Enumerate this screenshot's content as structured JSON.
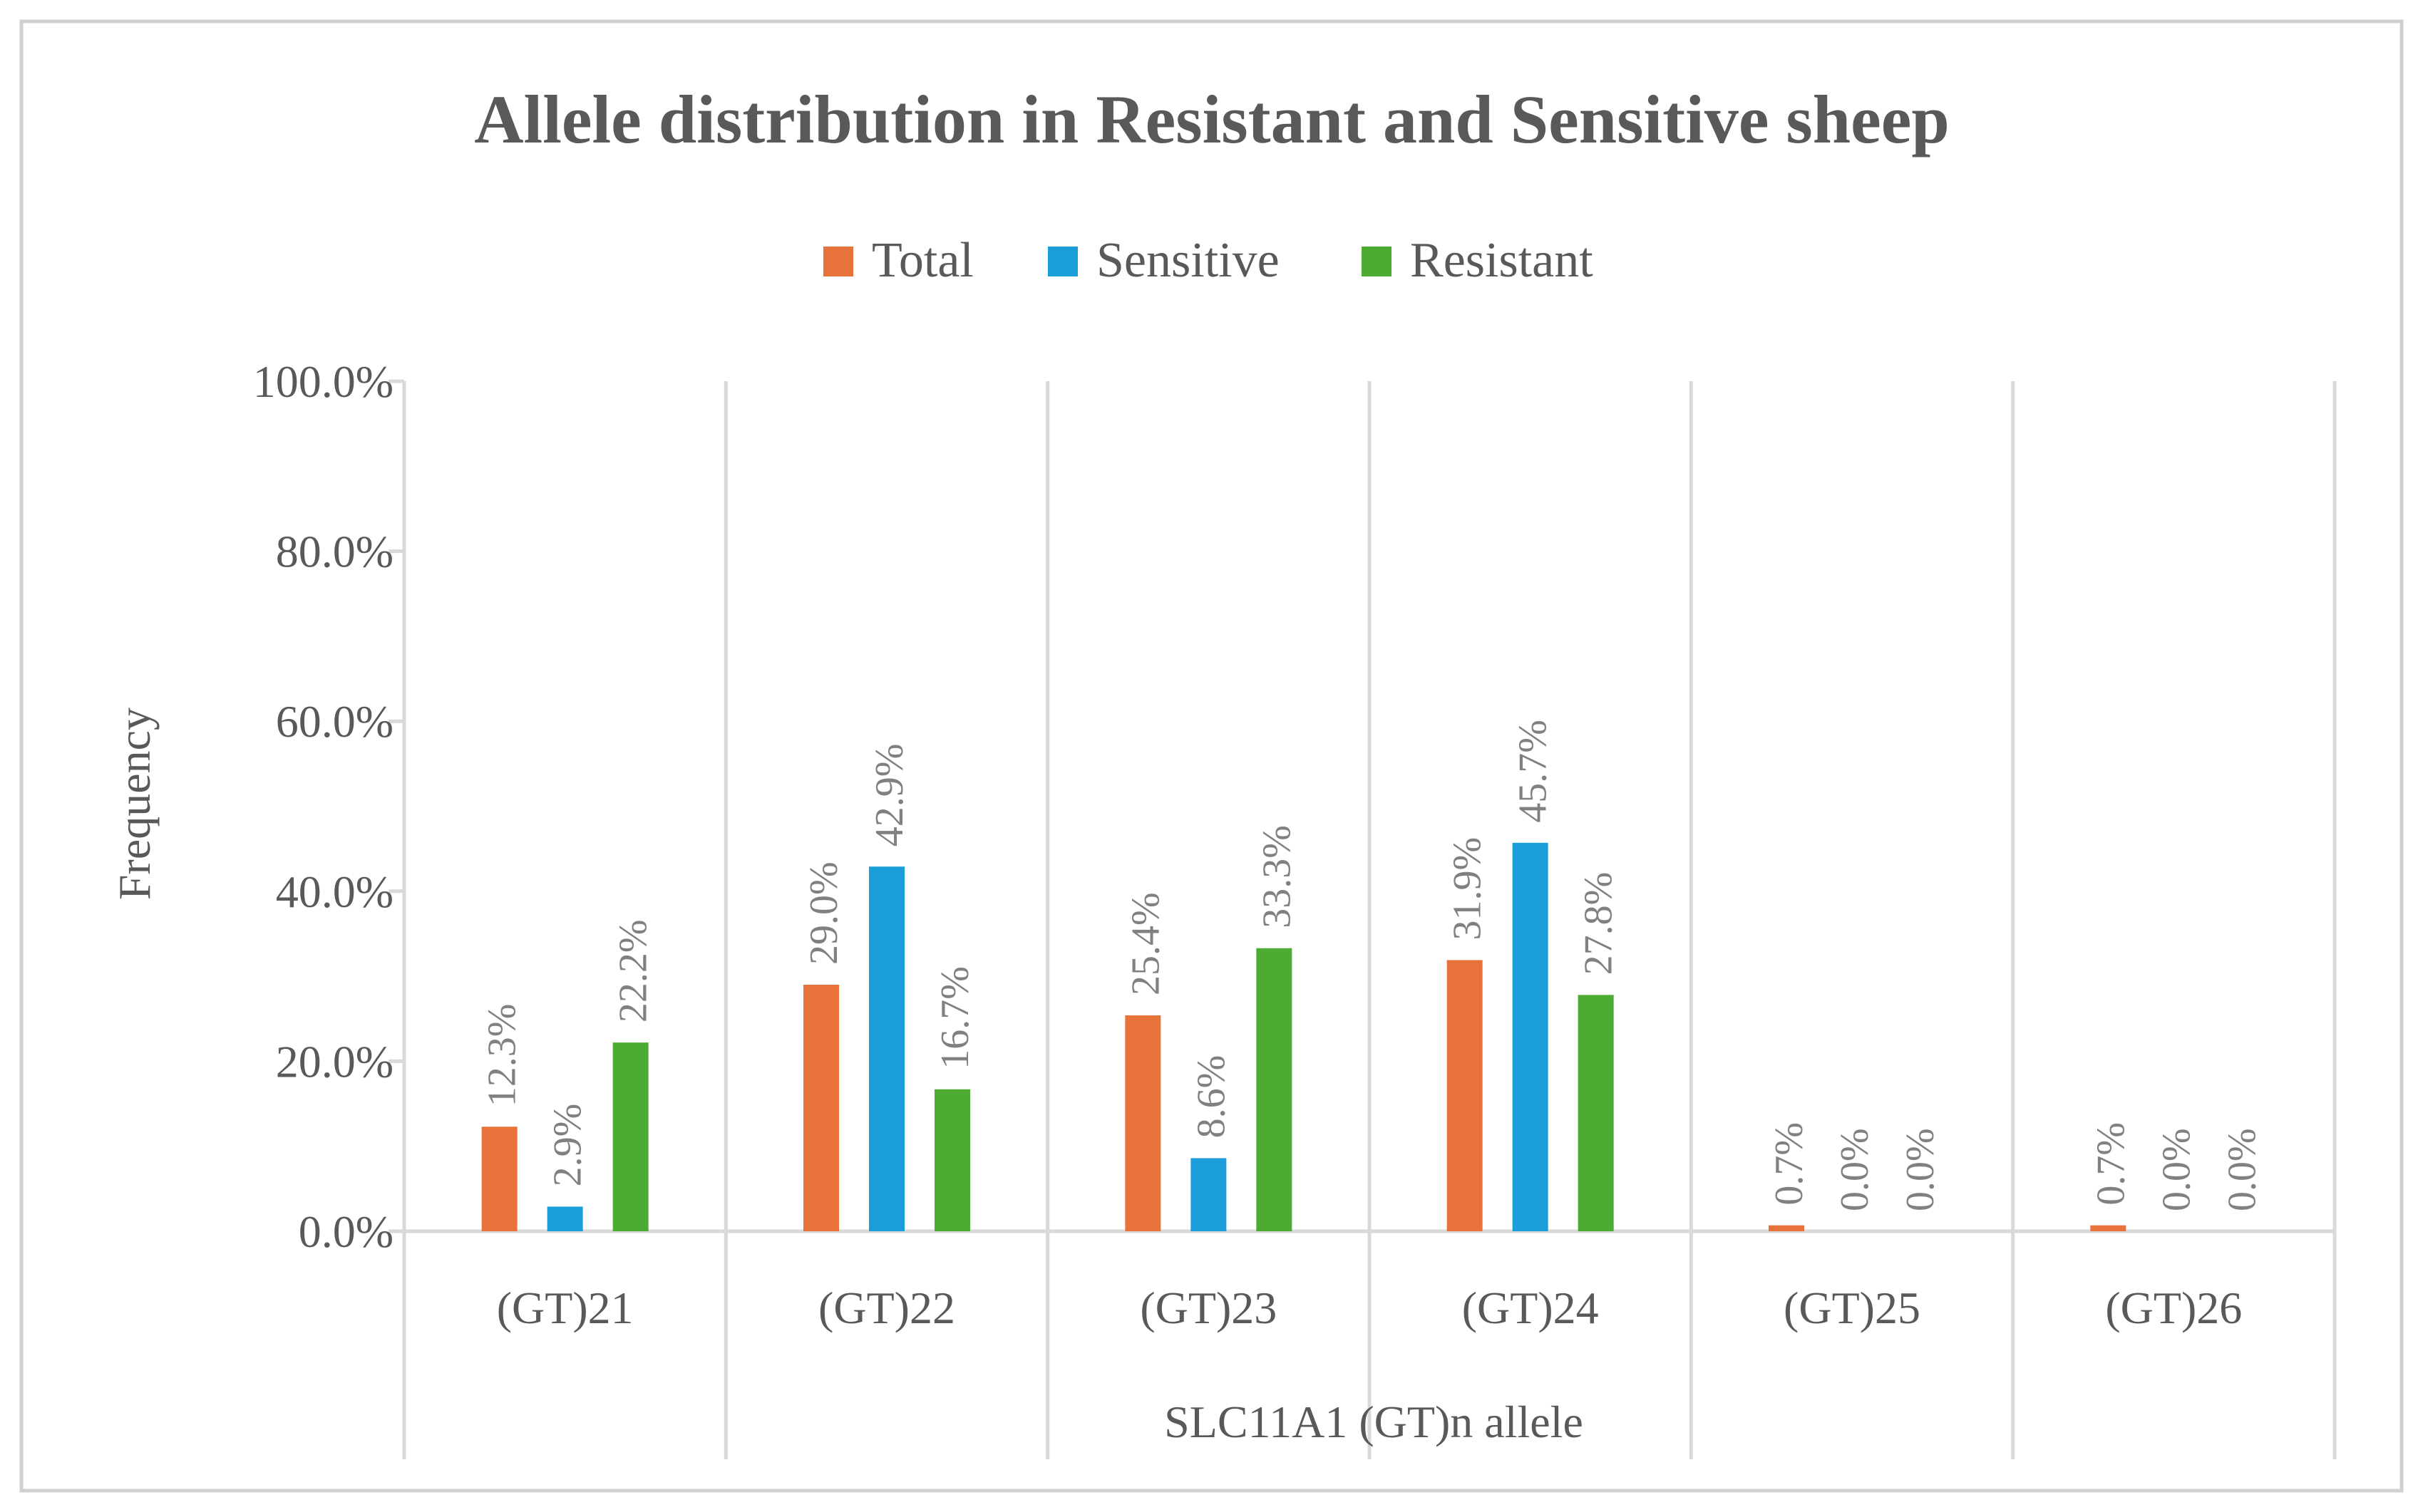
{
  "chart_data": {
    "type": "bar",
    "title": "Allele distribution in Resistant and Sensitive sheep",
    "xlabel": "SLC11A1 (GT)n allele",
    "ylabel": "Frequency",
    "ylim": [
      0,
      100
    ],
    "yticks": [
      "0.0%",
      "20.0%",
      "40.0%",
      "60.0%",
      "80.0%",
      "100.0%"
    ],
    "ytick_values": [
      0,
      20,
      40,
      60,
      80,
      100
    ],
    "categories": [
      "(GT)21",
      "(GT)22",
      "(GT)23",
      "(GT)24",
      "(GT)25",
      "(GT)26"
    ],
    "grid": true,
    "legend_position": "top-center",
    "series": [
      {
        "name": "Total",
        "color": "#E8733A",
        "values": [
          12.3,
          29.0,
          25.4,
          31.9,
          0.7,
          0.7
        ],
        "labels": [
          "12.3%",
          "29.0%",
          "25.4%",
          "31.9%",
          "0.7%",
          "0.7%"
        ]
      },
      {
        "name": "Sensitive",
        "color": "#1B9DD9",
        "values": [
          2.9,
          42.9,
          8.6,
          45.7,
          0.0,
          0.0
        ],
        "labels": [
          "2.9%",
          "42.9%",
          "8.6%",
          "45.7%",
          "0.0%",
          "0.0%"
        ]
      },
      {
        "name": "Resistant",
        "color": "#4DAA32",
        "values": [
          22.2,
          16.7,
          33.3,
          27.8,
          0.0,
          0.0
        ],
        "labels": [
          "22.2%",
          "16.7%",
          "33.3%",
          "27.8%",
          "0.0%",
          "0.0%"
        ]
      }
    ]
  }
}
